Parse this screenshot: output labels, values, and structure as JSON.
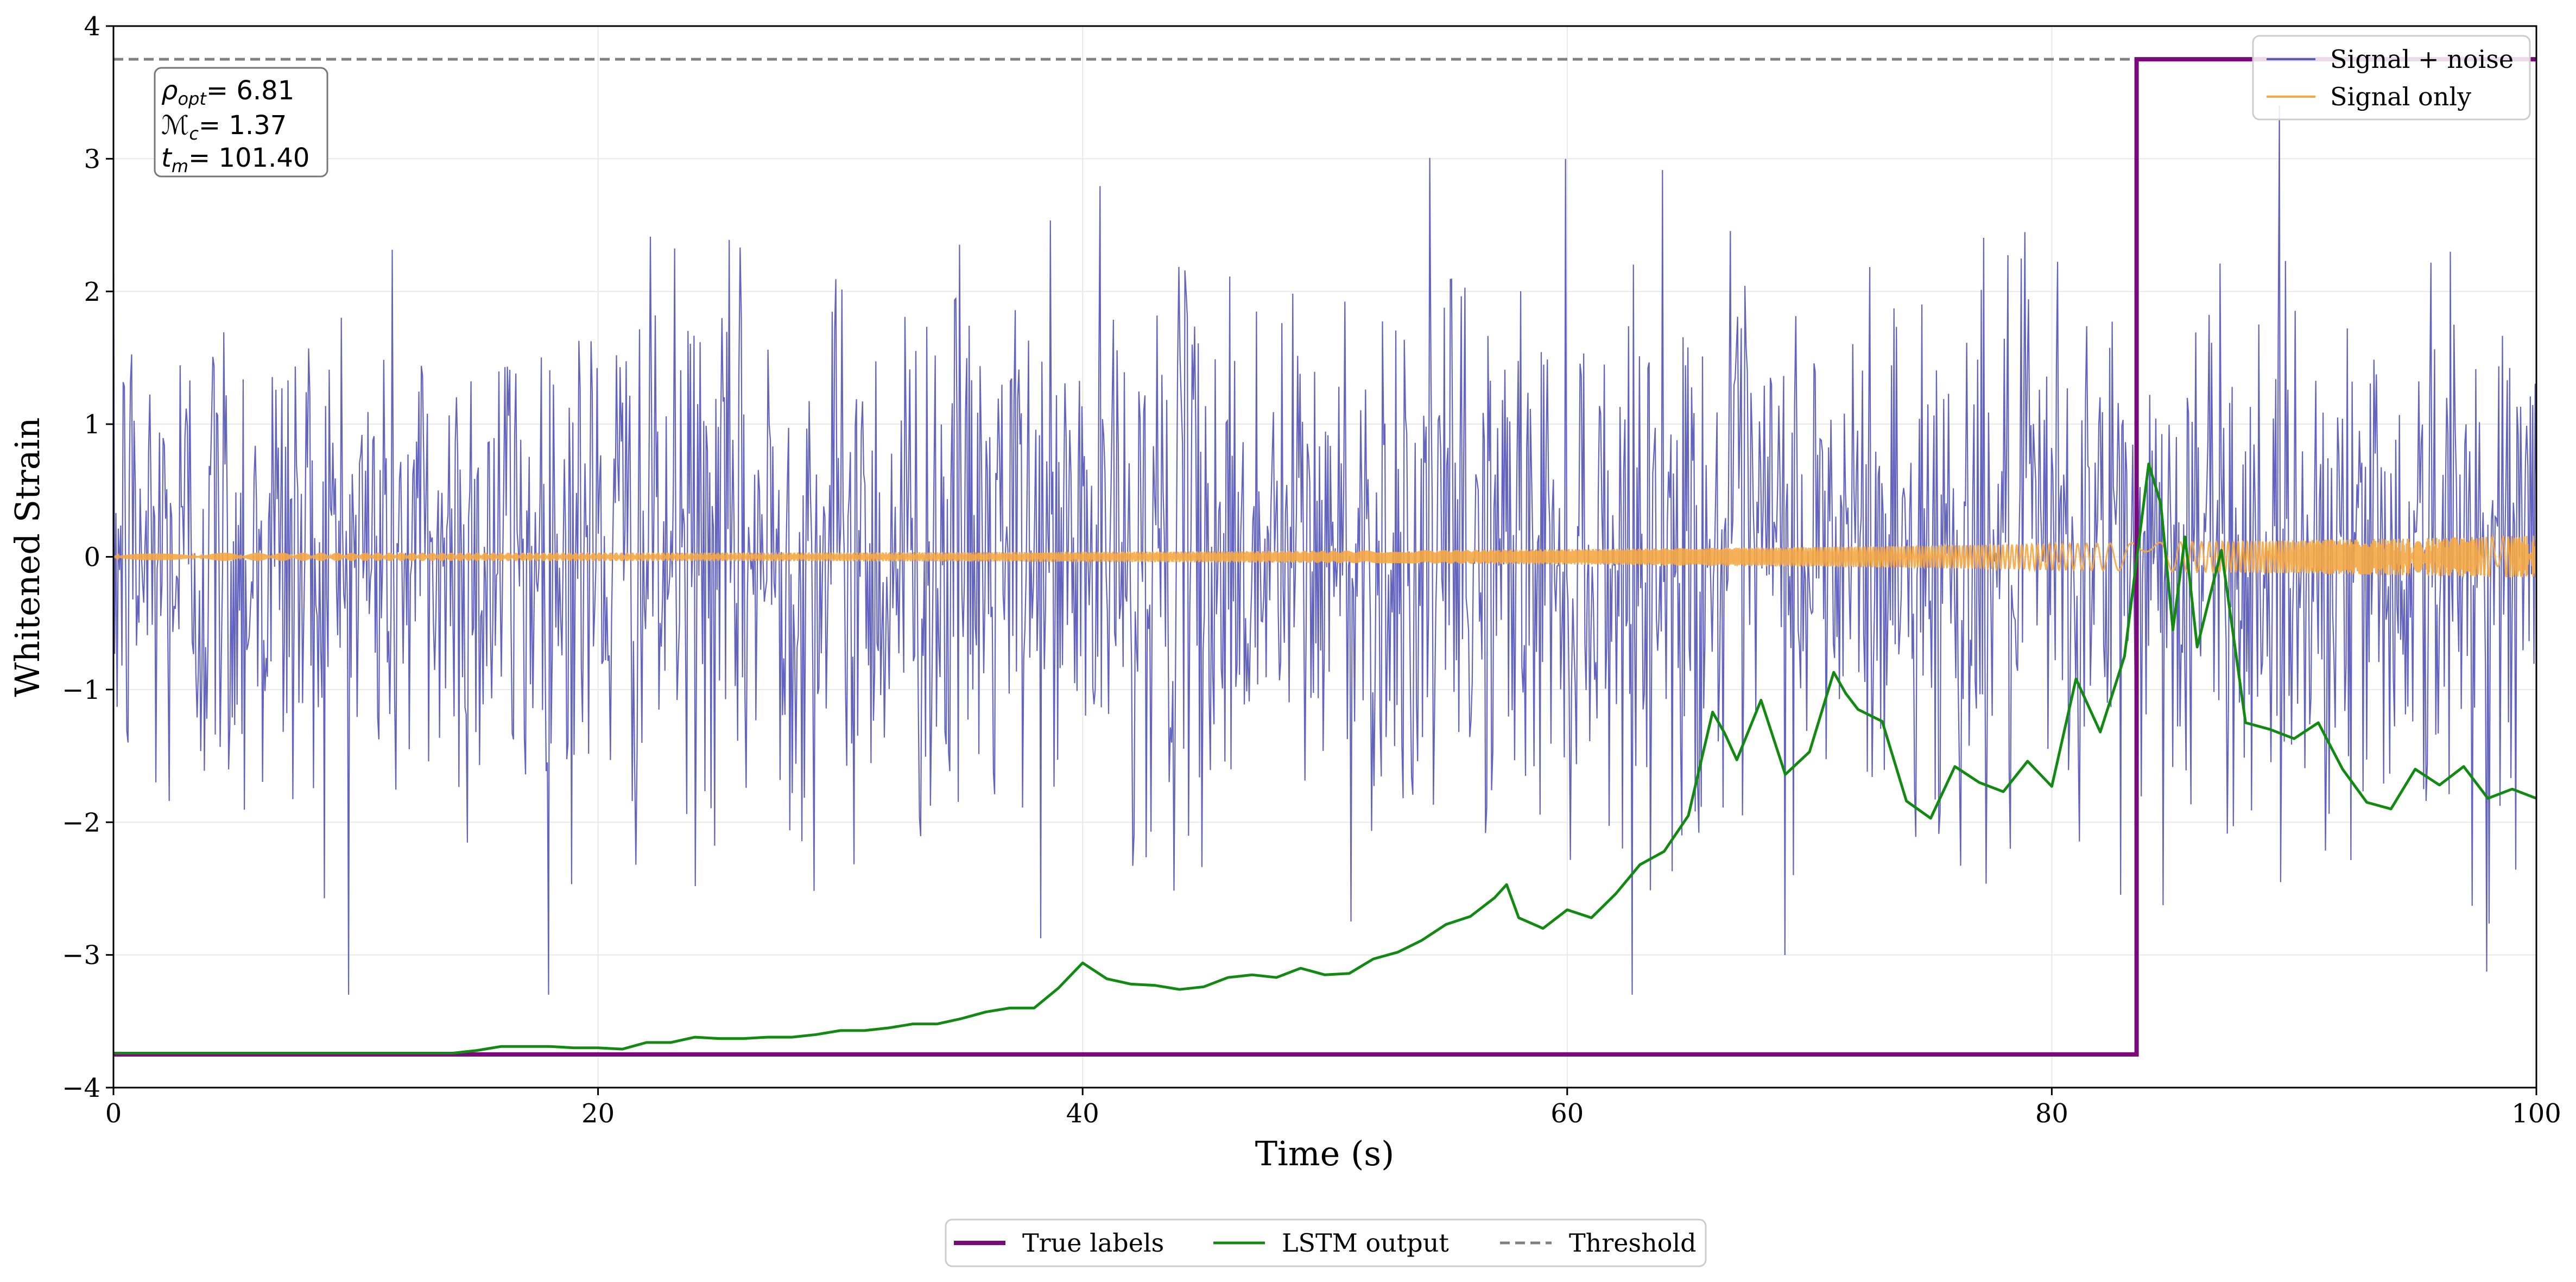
{
  "chart_data": {
    "type": "line",
    "title": "",
    "xlabel": "Time (s)",
    "ylabel": "Whitened Strain",
    "xlim": [
      0,
      100
    ],
    "ylim": [
      -4,
      4
    ],
    "x_ticks": [
      0,
      20,
      40,
      60,
      80,
      100
    ],
    "y_ticks": [
      -4,
      -3,
      -2,
      -1,
      0,
      1,
      2,
      3,
      4
    ],
    "x_tick_labels": [
      "0",
      "20",
      "40",
      "60",
      "80",
      "100"
    ],
    "y_tick_labels": [
      "−4",
      "−3",
      "−2",
      "−1",
      "0",
      "1",
      "2",
      "3",
      "4"
    ],
    "grid": true,
    "annotation": {
      "rho_label": "ρ",
      "rho_sub": "opt",
      "rho_value": "= 6.81",
      "mc_label": "ℳ",
      "mc_sub": "c",
      "mc_value": "= 1.37",
      "tm_label": "t",
      "tm_sub": "m",
      "tm_value": "= 101.40"
    },
    "legend_upper": {
      "position": "top-right",
      "entries": [
        {
          "label": "Signal + noise",
          "color": "#5b5bbd"
        },
        {
          "label": "Signal only",
          "color": "#f5a742"
        }
      ]
    },
    "legend_lower": {
      "position": "bottom-center",
      "entries": [
        {
          "label": "True labels",
          "color": "#7a0a7a",
          "style": "solid"
        },
        {
          "label": "LSTM output",
          "color": "#128a12",
          "style": "solid"
        },
        {
          "label": "Threshold",
          "color": "#808080",
          "style": "dashed"
        }
      ]
    },
    "series": [
      {
        "name": "Signal + noise",
        "color": "#5b5bbd",
        "kind": "noise",
        "n_samples": 2000,
        "std": 1.0,
        "range": [
          -3.3,
          3.4
        ]
      },
      {
        "name": "Signal only",
        "color": "#f5a742",
        "kind": "chirp",
        "amplitude_start": 0.03,
        "amplitude_end": 0.16
      },
      {
        "name": "True labels",
        "color": "#7a0a7a",
        "kind": "step",
        "low": -3.75,
        "high": 3.75,
        "step_x": 83.5
      },
      {
        "name": "Threshold",
        "color": "#808080",
        "kind": "hline",
        "y": 3.75
      },
      {
        "name": "LSTM output",
        "color": "#128a12",
        "kind": "line",
        "x": [
          0,
          5,
          10,
          14,
          15,
          16,
          17,
          18,
          19,
          20,
          21,
          22,
          23,
          24,
          25,
          26,
          27,
          28,
          29,
          30,
          31,
          32,
          33,
          34,
          35,
          36,
          37,
          38,
          39,
          40,
          41,
          42,
          43,
          44,
          45,
          46,
          47,
          48,
          49,
          50,
          51,
          52,
          53,
          54,
          55,
          56,
          57,
          57.5,
          58,
          59,
          60,
          61,
          62,
          63,
          64,
          65,
          66,
          66.5,
          67,
          68,
          69,
          70,
          71,
          71.5,
          72,
          73,
          74,
          75,
          76,
          77,
          78,
          79,
          80,
          81,
          82,
          83,
          84,
          84.5,
          85,
          85.5,
          86,
          87,
          88,
          89,
          90,
          91,
          92,
          93,
          94,
          95,
          96,
          97,
          98,
          99,
          100
        ],
        "y": [
          -3.74,
          -3.74,
          -3.74,
          -3.74,
          -3.72,
          -3.69,
          -3.69,
          -3.69,
          -3.7,
          -3.7,
          -3.71,
          -3.66,
          -3.66,
          -3.62,
          -3.63,
          -3.63,
          -3.62,
          -3.62,
          -3.6,
          -3.57,
          -3.57,
          -3.55,
          -3.52,
          -3.52,
          -3.48,
          -3.43,
          -3.4,
          -3.4,
          -3.25,
          -3.06,
          -3.18,
          -3.22,
          -3.23,
          -3.26,
          -3.24,
          -3.17,
          -3.15,
          -3.17,
          -3.1,
          -3.15,
          -3.14,
          -3.03,
          -2.98,
          -2.89,
          -2.77,
          -2.71,
          -2.57,
          -2.47,
          -2.72,
          -2.8,
          -2.66,
          -2.72,
          -2.54,
          -2.32,
          -2.22,
          -1.95,
          -1.17,
          -1.33,
          -1.53,
          -1.08,
          -1.64,
          -1.47,
          -0.87,
          -1.03,
          -1.15,
          -1.24,
          -1.84,
          -1.97,
          -1.58,
          -1.7,
          -1.77,
          -1.54,
          -1.73,
          -0.92,
          -1.32,
          -0.75,
          0.7,
          0.4,
          -0.55,
          0.15,
          -0.68,
          0.05,
          -1.25,
          -1.3,
          -1.37,
          -1.25,
          -1.6,
          -1.85,
          -1.9,
          -1.6,
          -1.72,
          -1.58,
          -1.82,
          -1.75,
          -1.82
        ]
      }
    ]
  }
}
